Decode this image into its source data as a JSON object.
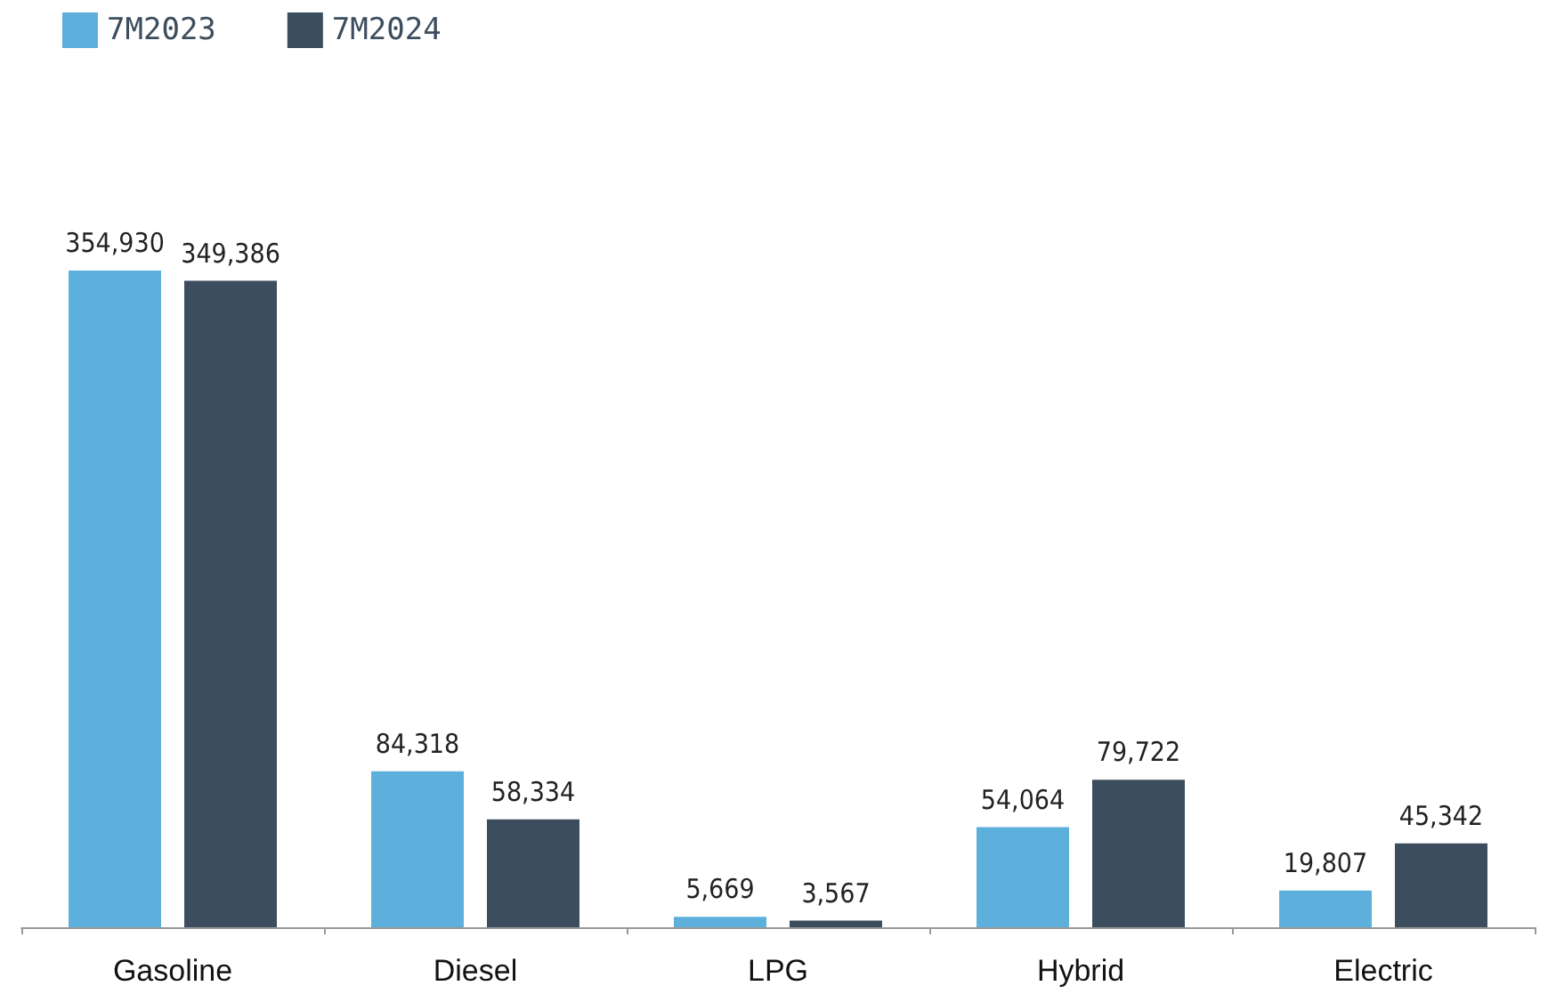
{
  "chart_data": {
    "type": "bar",
    "categories": [
      "Gasoline",
      "Diesel",
      "LPG",
      "Hybrid",
      "Electric"
    ],
    "series": [
      {
        "name": "7M2023",
        "color": "#5eb0dc",
        "values": [
          354930,
          84318,
          5669,
          54064,
          19807
        ],
        "value_labels": [
          "354,930",
          "84,318",
          "5,669",
          "54,064",
          "19,807"
        ]
      },
      {
        "name": "7M2024",
        "color": "#3c4e5e",
        "values": [
          349386,
          58334,
          3567,
          79722,
          45342
        ],
        "value_labels": [
          "349,386",
          "58,334",
          "3,567",
          "79,722",
          "45,342"
        ]
      }
    ],
    "legend": "top left"
  }
}
